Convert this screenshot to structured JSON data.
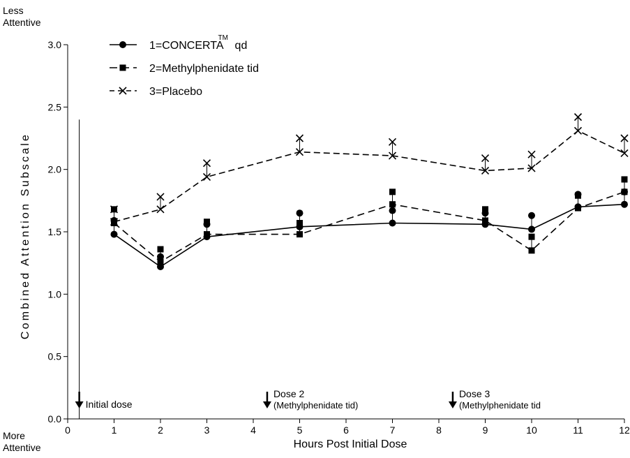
{
  "chart_data": {
    "type": "line",
    "xlabel": "Hours Post Initial Dose",
    "ylabel": "Combined Attention Subscale",
    "y_top_note": [
      "Less",
      "Attentive"
    ],
    "y_bottom_note": [
      "More",
      "Attentive"
    ],
    "xlim": [
      0,
      12
    ],
    "ylim": [
      0,
      3.0
    ],
    "x_ticks": [
      0,
      1,
      2,
      3,
      4,
      5,
      6,
      7,
      8,
      9,
      10,
      11,
      12
    ],
    "x_tick_labels": [
      "0",
      "1",
      "2",
      "3",
      "4",
      "5",
      "6",
      "7",
      "8",
      "9",
      "10",
      "11",
      "12"
    ],
    "y_ticks": [
      0,
      0.5,
      1.0,
      1.5,
      2.0,
      2.5,
      3.0
    ],
    "y_tick_labels": [
      "0.0",
      "0.5",
      "1.0",
      "1.5",
      "2.0",
      "2.5",
      "3.0"
    ],
    "grid": false,
    "legend_position": "top-left",
    "legend": [
      {
        "label": "1=CONCERTA",
        "superscript": "TM",
        "suffix": "qd",
        "marker": "circle",
        "dash": "solid"
      },
      {
        "label": "2=Methylphenidate tid",
        "superscript": "",
        "suffix": "",
        "marker": "square",
        "dash": "dashed"
      },
      {
        "label": "3=Placebo",
        "superscript": "",
        "suffix": "",
        "marker": "x",
        "dash": "dashed-fine"
      }
    ],
    "x": [
      1,
      2,
      3,
      5,
      7,
      9,
      10,
      11,
      12
    ],
    "series": [
      {
        "name": "1=CONCERTA qd",
        "marker": "circle",
        "dash": "solid",
        "values": [
          1.48,
          1.22,
          1.46,
          1.54,
          1.57,
          1.56,
          1.52,
          1.7,
          1.72
        ],
        "error_tops": [
          1.59,
          1.3,
          1.56,
          1.65,
          1.67,
          1.65,
          1.63,
          1.8,
          1.82
        ]
      },
      {
        "name": "2=Methylphenidate tid",
        "marker": "square",
        "dash": "dashed",
        "values": [
          1.57,
          1.26,
          1.48,
          1.48,
          1.72,
          1.59,
          1.35,
          1.69,
          1.82
        ],
        "error_tops": [
          1.68,
          1.36,
          1.58,
          1.57,
          1.82,
          1.68,
          1.46,
          1.79,
          1.92
        ]
      },
      {
        "name": "3=Placebo",
        "marker": "x",
        "dash": "dashed-fine",
        "values": [
          1.58,
          1.68,
          1.94,
          2.14,
          2.11,
          1.99,
          2.01,
          2.31,
          2.13
        ],
        "error_tops": [
          1.68,
          1.78,
          2.05,
          2.25,
          2.22,
          2.09,
          2.12,
          2.42,
          2.25
        ]
      }
    ],
    "dose_markers": [
      {
        "x": 0.25,
        "lines": [
          "Initial dose"
        ],
        "full_line": true
      },
      {
        "x": 4.3,
        "lines": [
          "Dose 2",
          "(Methylphenidate tid)"
        ],
        "full_line": false
      },
      {
        "x": 8.3,
        "lines": [
          "Dose 3",
          "(Methylphenidate tid"
        ],
        "full_line": false
      }
    ]
  }
}
